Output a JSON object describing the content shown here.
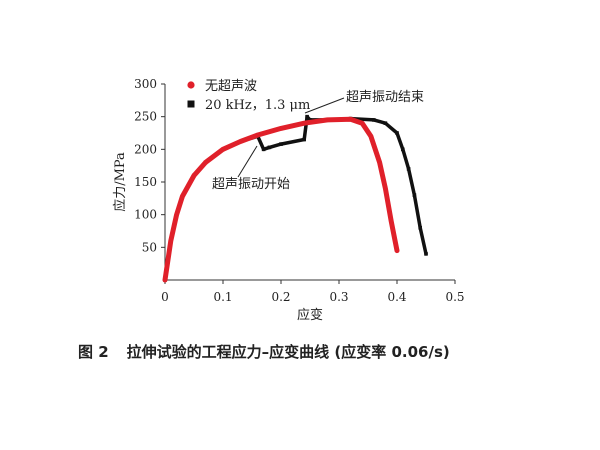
{
  "caption": {
    "figure_number": "图 2",
    "text": "拉伸试验的工程应力–应变曲线 (应变率 0.06/s)"
  },
  "chart_data": {
    "type": "line",
    "xlabel": "应变",
    "ylabel": "应力/MPa",
    "xlim": [
      0,
      0.5
    ],
    "ylim": [
      0,
      300
    ],
    "x_ticks": [
      "0",
      "0.1",
      "0.2",
      "0.3",
      "0.4",
      "0.5"
    ],
    "y_ticks": [
      "50",
      "100",
      "150",
      "200",
      "250",
      "300"
    ],
    "series": [
      {
        "name": "无超声波",
        "color": "#e0202a",
        "marker": "circle",
        "x": [
          0.0,
          0.01,
          0.02,
          0.03,
          0.05,
          0.07,
          0.1,
          0.13,
          0.16,
          0.2,
          0.24,
          0.28,
          0.32,
          0.34,
          0.355,
          0.37,
          0.38,
          0.39,
          0.4
        ],
        "y": [
          0,
          60,
          100,
          128,
          160,
          180,
          200,
          212,
          222,
          232,
          240,
          245,
          246,
          240,
          220,
          180,
          140,
          90,
          45
        ]
      },
      {
        "name": "20 kHz，1.3 μm",
        "color": "#111111",
        "marker": "square",
        "x": [
          0.0,
          0.01,
          0.02,
          0.03,
          0.05,
          0.07,
          0.1,
          0.13,
          0.16,
          0.17,
          0.18,
          0.2,
          0.24,
          0.245,
          0.25,
          0.28,
          0.32,
          0.36,
          0.38,
          0.4,
          0.41,
          0.42,
          0.43,
          0.44,
          0.45
        ],
        "y": [
          0,
          60,
          100,
          128,
          160,
          180,
          200,
          212,
          220,
          200,
          203,
          208,
          215,
          250,
          245,
          245,
          247,
          245,
          240,
          225,
          200,
          170,
          130,
          80,
          40
        ]
      }
    ],
    "annotations": [
      {
        "text": "超声振动开始",
        "x": 0.165,
        "y": 210
      },
      {
        "text": "超声振动结束",
        "x": 0.245,
        "y": 258
      }
    ],
    "legend_position": "top-left",
    "grid": false
  }
}
